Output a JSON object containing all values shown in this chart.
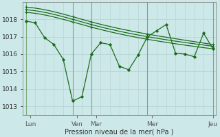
{
  "bg_color": "#cce8e8",
  "grid_color_h": "#b8d8d8",
  "grid_color_v": "#b8cccc",
  "line_color": "#1a6b1a",
  "marker_color": "#1a6b1a",
  "xlabel": "Pression niveau de la mer( hPa )",
  "yticks": [
    1013,
    1014,
    1015,
    1016,
    1017,
    1018
  ],
  "ylim": [
    1012.5,
    1019.0
  ],
  "xlim": [
    -0.3,
    20.3
  ],
  "xtick_labels": [
    "Lun",
    "Ven",
    "Mar",
    "Mer",
    "Jeu"
  ],
  "xtick_positions": [
    0.5,
    5.5,
    7.5,
    13.5,
    20.0
  ],
  "vline_positions": [
    0,
    5,
    7,
    13,
    20
  ],
  "smooth_line1_x": [
    0,
    5,
    7,
    13,
    20
  ],
  "smooth_line1_y": [
    1018.7,
    1018.15,
    1017.85,
    1017.15,
    1016.55
  ],
  "smooth_line2_x": [
    0,
    5,
    7,
    13,
    20
  ],
  "smooth_line2_y": [
    1018.55,
    1018.0,
    1017.7,
    1017.0,
    1016.45
  ],
  "smooth_line3_x": [
    0,
    5,
    7,
    13,
    20
  ],
  "smooth_line3_y": [
    1018.4,
    1017.85,
    1017.55,
    1016.85,
    1016.3
  ],
  "jagged_x": [
    0,
    1,
    2,
    3,
    4,
    5,
    6,
    7,
    8,
    9,
    10,
    11,
    12,
    13,
    14,
    15,
    16,
    17,
    18,
    19,
    20
  ],
  "jagged_y": [
    1017.9,
    1017.8,
    1016.95,
    1016.55,
    1015.7,
    1013.3,
    1013.55,
    1016.0,
    1016.65,
    1016.55,
    1015.3,
    1015.1,
    1015.95,
    1017.0,
    1017.35,
    1017.7,
    1016.05,
    1016.0,
    1015.85,
    1017.2,
    1016.3
  ]
}
